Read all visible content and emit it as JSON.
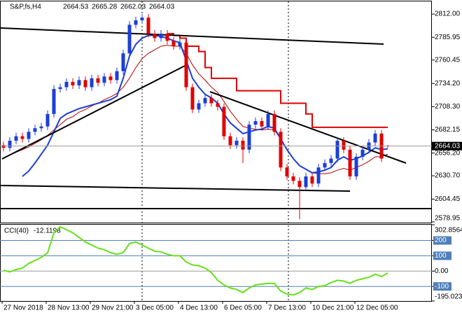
{
  "chart_data": [
    {
      "type": "candlestick",
      "title": "S&P,fs,H4",
      "categories": [
        "27 Nov 2018",
        null,
        null,
        null,
        null,
        null,
        null,
        "28 Nov 13:00",
        null,
        null,
        null,
        null,
        null,
        null,
        "29 Nov 21:00",
        null,
        null,
        null,
        null,
        null,
        null,
        "3 Dec 05:00",
        null,
        null,
        null,
        null,
        null,
        null,
        "4 Dec 13:00",
        null,
        null,
        null,
        null,
        null,
        null,
        "6 Dec 05:00",
        null,
        null,
        null,
        null,
        null,
        null,
        "7 Dec 13:00",
        null,
        null,
        null,
        null,
        null,
        null,
        "10 Dec 21:00",
        null,
        null,
        null,
        null,
        null,
        null,
        "12 Dec 05:00",
        null,
        null,
        null,
        null,
        null
      ],
      "open": [
        2665,
        2662,
        2670,
        2675,
        2672,
        2680,
        2684,
        2686,
        2700,
        2728,
        2730,
        2736,
        2732,
        2738,
        2730,
        2740,
        2735,
        2742,
        2738,
        2748,
        2768,
        2800,
        2805,
        2808,
        2790,
        2785,
        2790,
        2782,
        2776,
        2780,
        2730,
        2705,
        2712,
        2718,
        2712,
        2708,
        2675,
        2665,
        2670,
        2660,
        2688,
        2692,
        2686,
        2700,
        2680,
        2640,
        2630,
        2625,
        2618,
        2630,
        2622,
        2640,
        2645,
        2650,
        2670,
        2660,
        2630,
        2652,
        2660,
        2668,
        2678,
        2664.53
      ],
      "high": [
        2669,
        2674,
        2679,
        2679,
        2684,
        2688,
        2690,
        2704,
        2732,
        2734,
        2740,
        2740,
        2742,
        2742,
        2744,
        2744,
        2746,
        2746,
        2752,
        2772,
        2804,
        2809,
        2812,
        2812,
        2794,
        2794,
        2794,
        2786,
        2784,
        2784,
        2734,
        2716,
        2722,
        2722,
        2716,
        2712,
        2679,
        2674,
        2674,
        2692,
        2696,
        2696,
        2704,
        2704,
        2684,
        2644,
        2634,
        2629,
        2634,
        2634,
        2644,
        2649,
        2654,
        2674,
        2674,
        2664,
        2656,
        2664,
        2672,
        2682,
        2682,
        2665.28
      ],
      "low": [
        2658,
        2658,
        2666,
        2668,
        2668,
        2676,
        2680,
        2682,
        2696,
        2724,
        2726,
        2728,
        2728,
        2726,
        2726,
        2731,
        2731,
        2734,
        2734,
        2744,
        2764,
        2796,
        2801,
        2786,
        2781,
        2781,
        2778,
        2772,
        2772,
        2726,
        2701,
        2701,
        2708,
        2708,
        2704,
        2671,
        2661,
        2661,
        2645,
        2656,
        2684,
        2682,
        2682,
        2676,
        2636,
        2626,
        2621,
        2582,
        2614,
        2618,
        2618,
        2636,
        2641,
        2646,
        2656,
        2626,
        2626,
        2648,
        2656,
        2664,
        2646,
        2662.03
      ],
      "close": [
        2662,
        2670,
        2675,
        2672,
        2680,
        2684,
        2686,
        2700,
        2728,
        2730,
        2736,
        2732,
        2738,
        2730,
        2740,
        2735,
        2742,
        2738,
        2748,
        2768,
        2800,
        2805,
        2808,
        2790,
        2785,
        2790,
        2782,
        2776,
        2780,
        2730,
        2705,
        2712,
        2718,
        2712,
        2708,
        2675,
        2665,
        2670,
        2660,
        2688,
        2692,
        2686,
        2700,
        2680,
        2640,
        2630,
        2625,
        2618,
        2630,
        2622,
        2640,
        2645,
        2650,
        2670,
        2660,
        2630,
        2652,
        2660,
        2668,
        2678,
        2650,
        2664.03
      ],
      "up_color": "#1c3fd4",
      "down_color": "#e00000",
      "series": [
        {
          "color": "#b00000",
          "width": 1,
          "values": [
            2651,
            2654,
            2657,
            2660,
            2663,
            2667,
            2671,
            2676,
            2682,
            2688,
            2694,
            2697,
            2702,
            2705,
            2709,
            2712,
            2716,
            2719,
            2723,
            2730,
            2740,
            2752,
            2762,
            2768,
            2772,
            2776,
            2777,
            2776,
            2776,
            2768,
            2755,
            2745,
            2738,
            2730,
            2724,
            2714,
            2703,
            2694,
            2686,
            2684,
            2683,
            2682,
            2683,
            2682,
            2672,
            2660,
            2650,
            2642,
            2638,
            2634,
            2633,
            2633,
            2634,
            2637,
            2639,
            2637,
            2640,
            2643,
            2647,
            2652,
            2652,
            2655
          ]
        },
        {
          "color": "#1c3fd4",
          "width": 2,
          "values": [
            null,
            null,
            null,
            2630,
            2636,
            2645,
            2655,
            2665,
            2680,
            2695,
            2700,
            2703,
            2706,
            2708,
            2710,
            2712,
            2714,
            2716,
            2720,
            2740,
            2765,
            2778,
            2785,
            2788,
            2788,
            2787,
            2785,
            2782,
            2780,
            2760,
            2740,
            2730,
            2722,
            2718,
            2712,
            2700,
            2690,
            2684,
            2678,
            2680,
            2682,
            2683,
            2686,
            2684,
            2672,
            2660,
            2650,
            2642,
            2638,
            2634,
            2635,
            2637,
            2640,
            2648,
            2652,
            2648,
            2650,
            2653,
            2657,
            2662,
            2660,
            2661
          ]
        },
        {
          "color": "#e00000",
          "width": 2,
          "step": true,
          "values": [
            null,
            null,
            null,
            null,
            null,
            null,
            null,
            null,
            null,
            null,
            null,
            null,
            null,
            null,
            null,
            null,
            null,
            null,
            null,
            null,
            null,
            null,
            null,
            null,
            null,
            null,
            2790,
            2788,
            2785,
            2776,
            2776,
            2770,
            2752,
            2740,
            2740,
            2740,
            2740,
            2726,
            2726,
            2726,
            2726,
            2726,
            2726,
            2726,
            2712,
            2712,
            2712,
            2712,
            2700,
            2685,
            2685,
            2685,
            2685,
            2685,
            2685,
            2685,
            2685,
            2685,
            2685,
            2685,
            2685,
            2685
          ]
        }
      ],
      "ylim": [
        2578.2,
        2826.2
      ],
      "yticks": [
        {
          "value": 2812,
          "label": "2812.00"
        },
        2785.95,
        2760.45,
        {
          "value": 2734.2,
          "label": "2734.20"
        },
        {
          "value": 2708.3,
          "label": "2708.30"
        },
        2682.15,
        {
          "value": 2656.2,
          "label": "2656.20"
        },
        {
          "value": 2630.7,
          "label": "2630.70"
        },
        2604.45,
        2578.95
      ],
      "grid": false
    },
    {
      "type": "line",
      "title": "CCI(40)",
      "series": [
        {
          "color": "#66e01a",
          "width": 2,
          "values": [
            5,
            -5,
            10,
            20,
            50,
            70,
            90,
            120,
            250,
            290,
            270,
            250,
            220,
            190,
            170,
            150,
            140,
            120,
            110,
            120,
            180,
            190,
            170,
            150,
            130,
            125,
            110,
            100,
            100,
            60,
            40,
            35,
            20,
            -10,
            -60,
            -90,
            -110,
            -120,
            -140,
            -110,
            -90,
            -85,
            -80,
            -80,
            -130,
            -150,
            -155,
            -140,
            -110,
            -120,
            -100,
            -95,
            -75,
            -60,
            -65,
            -80,
            -60,
            -50,
            -40,
            -20,
            -35,
            -12.1198
          ]
        }
      ],
      "ylim": [
        -195.0233,
        302.8564
      ],
      "yticks": [
        302.8564,
        200,
        100,
        {
          "value": 0,
          "label": "0.00"
        },
        -100,
        -195.0233
      ],
      "levels": [
        200,
        100,
        -100
      ],
      "level_color": "#4f7fb8",
      "grid": false
    }
  ]
}
